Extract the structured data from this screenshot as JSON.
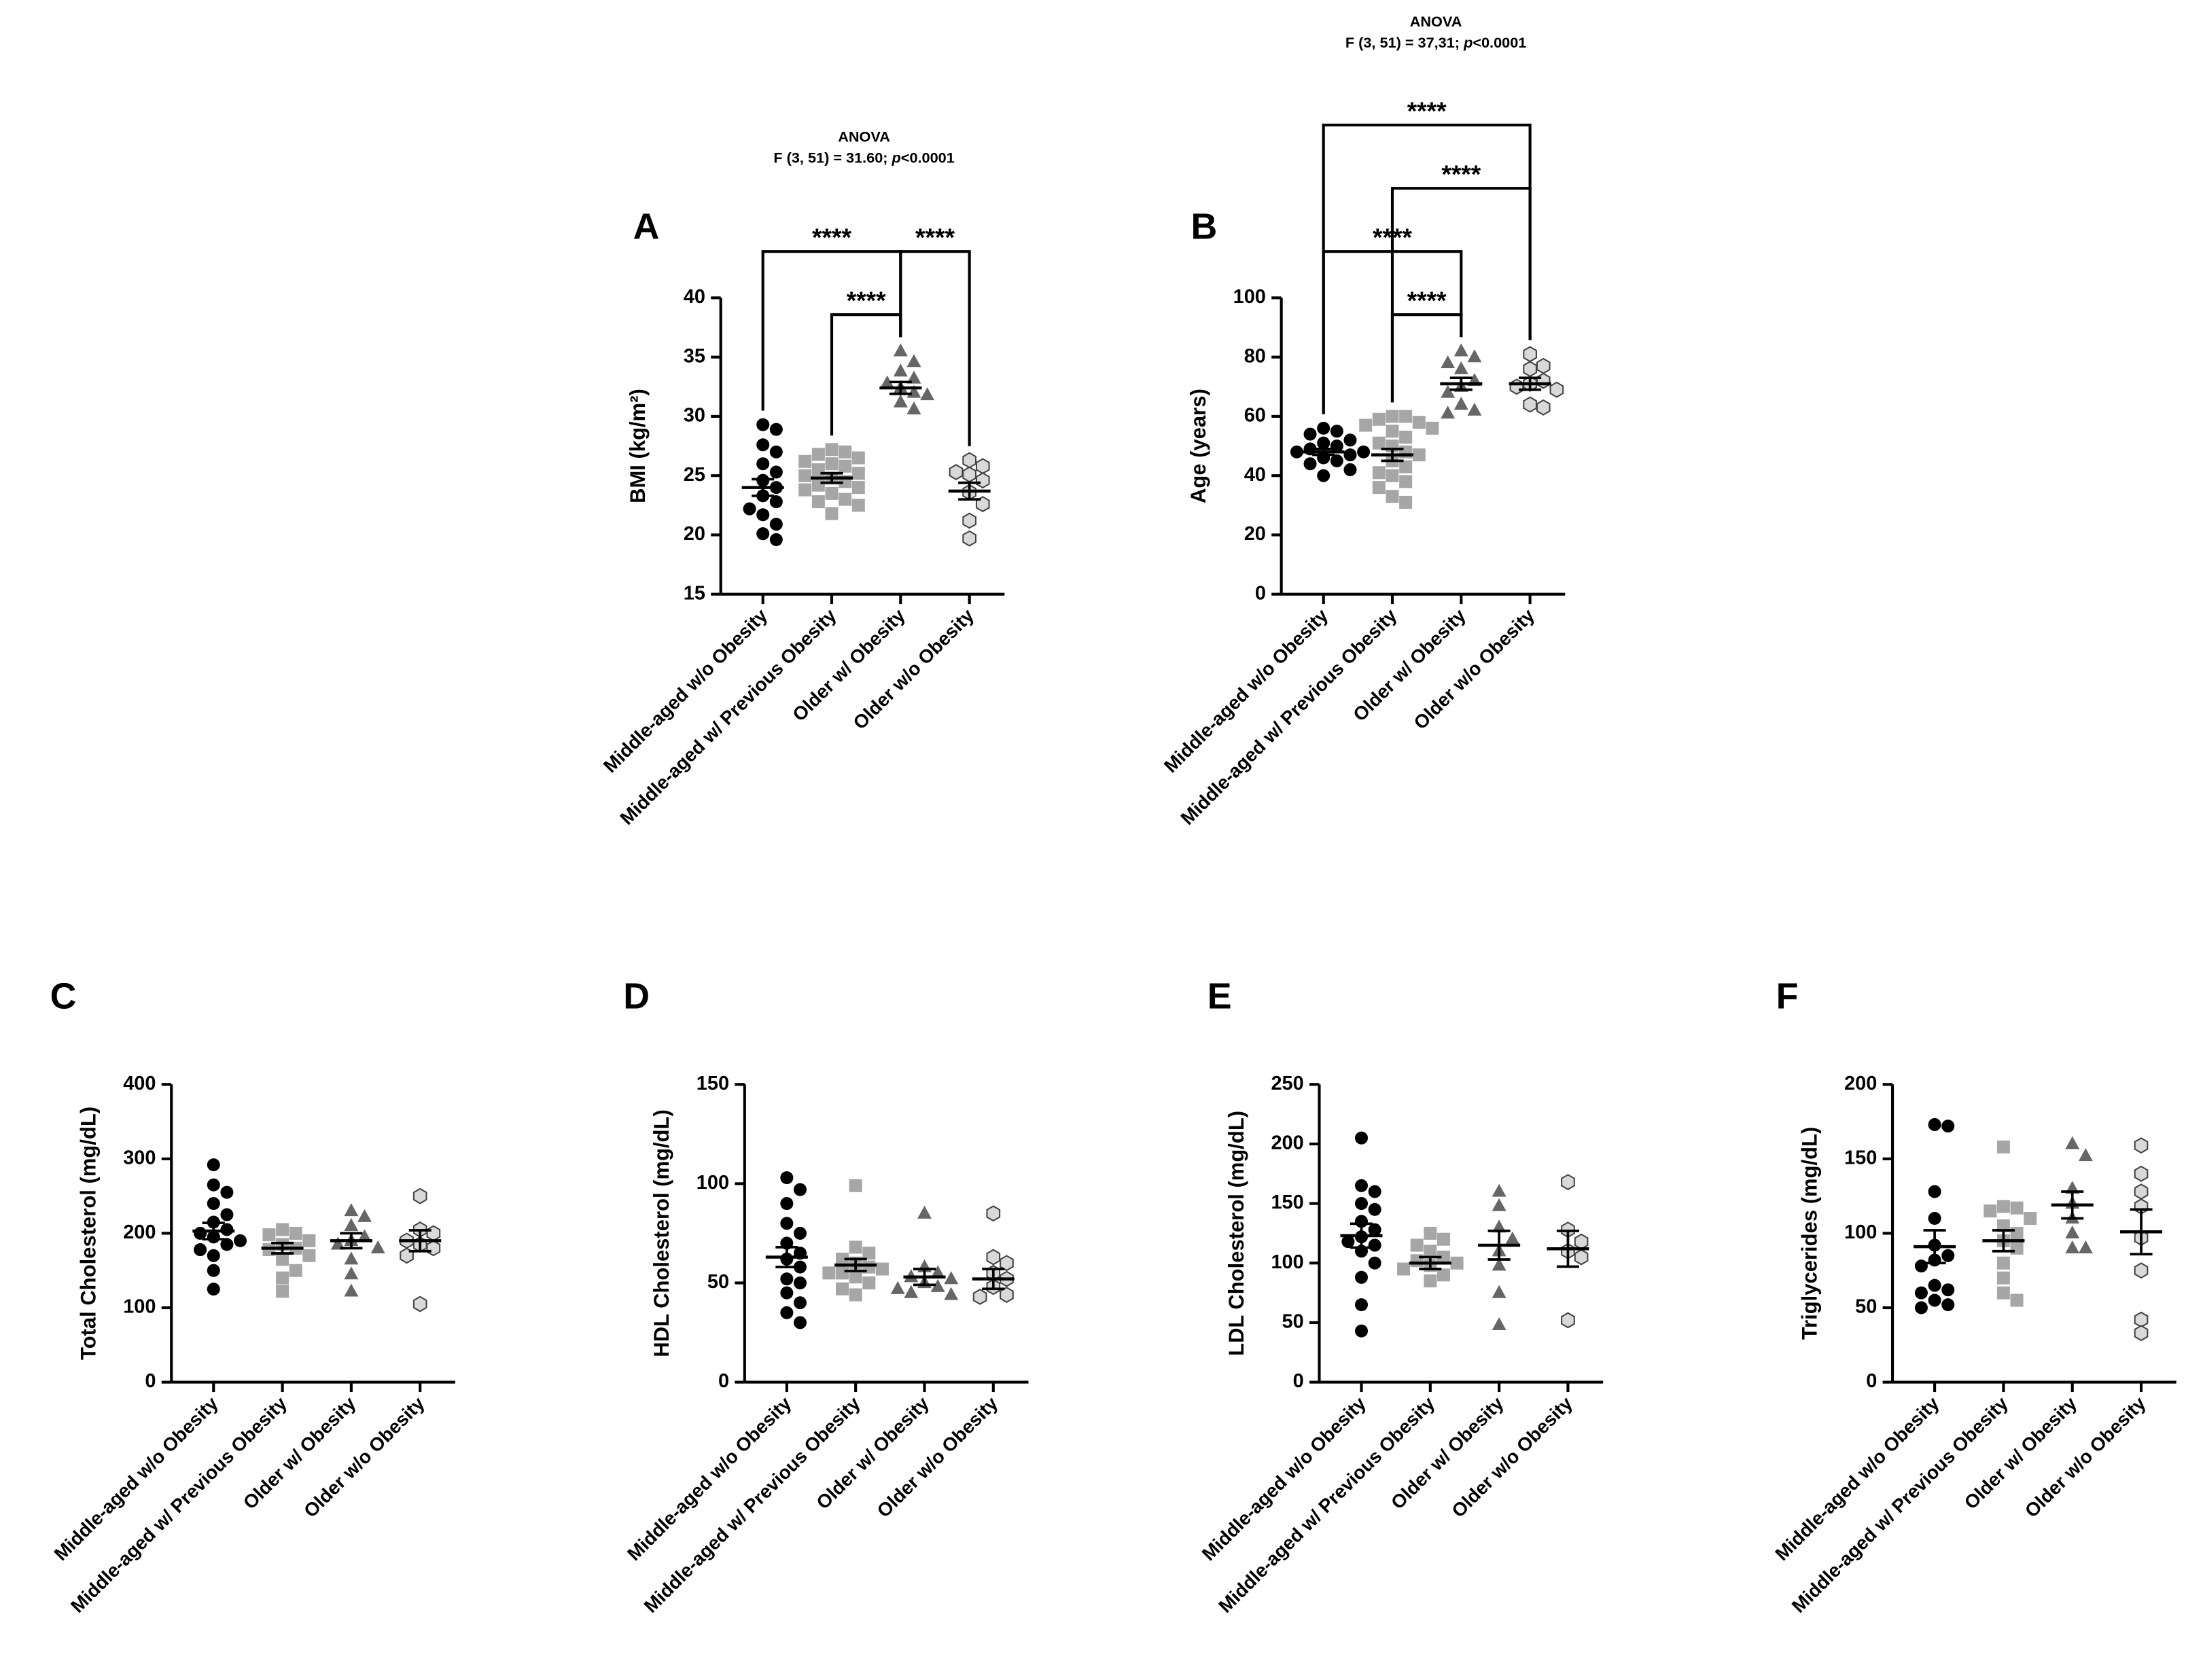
{
  "chart_data": [
    {
      "type": "dotplot",
      "label": "A",
      "y_label": "BMI (kg/m²)",
      "ylim": [
        15,
        40
      ],
      "yticks": [
        15,
        20,
        25,
        30,
        35,
        40
      ],
      "anova": {
        "title": "ANOVA",
        "stat": "F (3, 51) = 31.60; ",
        "p": "p",
        "p_text": "<0.0001"
      },
      "comparisons": [
        {
          "groups": [
            1,
            2
          ],
          "label": "****"
        },
        {
          "groups": [
            0,
            2
          ],
          "label": "****"
        },
        {
          "groups": [
            2,
            3
          ],
          "label": "****"
        }
      ],
      "series": [
        {
          "name": "Middle-aged w/o Obesity",
          "marker": "circle",
          "color": "#000000",
          "values": [
            29.3,
            28.9,
            27.6,
            27,
            26,
            25.3,
            24.6,
            24,
            23.3,
            22.8,
            22.2,
            21.7,
            20.9,
            20.1,
            19.6
          ],
          "mean": 24.0,
          "sem": 0.7
        },
        {
          "name": "Middle-aged w/ Previous Obesity",
          "marker": "square",
          "color": "#a6a6a6",
          "values": [
            27.2,
            27,
            26.8,
            26.5,
            26.2,
            26,
            25.8,
            25.5,
            25.2,
            25,
            24.8,
            24.5,
            24.2,
            24,
            23.8,
            23.5,
            23,
            22.8,
            22.5,
            21.8
          ],
          "mean": 24.8,
          "sem": 0.4
        },
        {
          "name": "Older w/ Obesity",
          "marker": "triangle",
          "color": "#666666",
          "values": [
            35.5,
            34.6,
            33.8,
            33.2,
            32.8,
            32.4,
            32,
            31.8,
            31.2,
            30.6
          ],
          "mean": 32.4,
          "sem": 0.5
        },
        {
          "name": "Older w/o Obesity",
          "marker": "hexagon",
          "color": "#d9d9d9",
          "values": [
            26.3,
            25.8,
            25.3,
            25.1,
            24.6,
            23.6,
            22.6,
            21.2,
            19.7
          ],
          "mean": 23.7,
          "sem": 0.7
        }
      ]
    },
    {
      "type": "dotplot",
      "label": "B",
      "y_label": "Age (years)",
      "ylim": [
        0,
        100
      ],
      "yticks": [
        0,
        20,
        40,
        60,
        80,
        100
      ],
      "anova": {
        "title": "ANOVA",
        "stat": "F (3, 51) = 37,31; ",
        "p": "p",
        "p_text": "<0.0001"
      },
      "comparisons": [
        {
          "groups": [
            1,
            2
          ],
          "label": "****"
        },
        {
          "groups": [
            0,
            2
          ],
          "label": "****"
        },
        {
          "groups": [
            1,
            3
          ],
          "label": "****"
        },
        {
          "groups": [
            0,
            3
          ],
          "label": "****"
        }
      ],
      "series": [
        {
          "name": "Middle-aged w/o Obesity",
          "marker": "circle",
          "color": "#000000",
          "values": [
            56,
            55,
            54,
            52,
            51,
            50,
            49,
            48,
            48,
            47,
            46,
            45,
            44,
            42,
            40
          ],
          "mean": 48,
          "sem": 1
        },
        {
          "name": "Middle-aged w/ Previous Obesity",
          "marker": "square",
          "color": "#a6a6a6",
          "values": [
            60,
            60,
            59,
            58,
            57,
            56,
            55,
            53,
            51,
            50,
            48,
            47,
            45,
            43,
            41,
            40,
            38,
            36,
            33,
            31
          ],
          "mean": 47,
          "sem": 2
        },
        {
          "name": "Older w/ Obesity",
          "marker": "triangle",
          "color": "#666666",
          "values": [
            82,
            80,
            78,
            76,
            72,
            70,
            68,
            64,
            62,
            61
          ],
          "mean": 71,
          "sem": 2
        },
        {
          "name": "Older w/o Obesity",
          "marker": "hexagon",
          "color": "#d9d9d9",
          "values": [
            81,
            77,
            76,
            72,
            71,
            70,
            69,
            64,
            63
          ],
          "mean": 71,
          "sem": 2
        }
      ]
    },
    {
      "type": "dotplot",
      "label": "C",
      "y_label": "Total Cholesterol (mg/dL)",
      "ylim": [
        0,
        400
      ],
      "yticks": [
        0,
        100,
        200,
        300,
        400
      ],
      "series": [
        {
          "name": "Middle-aged w/o Obesity",
          "marker": "circle",
          "color": "#000000",
          "values": [
            292,
            265,
            255,
            240,
            225,
            215,
            205,
            200,
            195,
            190,
            185,
            178,
            170,
            150,
            125
          ],
          "mean": 203,
          "sem": 11
        },
        {
          "name": "Middle-aged w/ Previous Obesity",
          "marker": "square",
          "color": "#a6a6a6",
          "values": [
            205,
            200,
            198,
            190,
            185,
            180,
            178,
            170,
            165,
            150,
            140,
            122
          ],
          "mean": 180,
          "sem": 7
        },
        {
          "name": "Older w/ Obesity",
          "marker": "triangle",
          "color": "#666666",
          "values": [
            230,
            222,
            210,
            195,
            190,
            185,
            180,
            165,
            145,
            122
          ],
          "mean": 190,
          "sem": 10
        },
        {
          "name": "Older w/o Obesity",
          "marker": "hexagon",
          "color": "#d9d9d9",
          "values": [
            250,
            205,
            200,
            190,
            185,
            180,
            170,
            105
          ],
          "mean": 190,
          "sem": 14
        }
      ]
    },
    {
      "type": "dotplot",
      "label": "D",
      "y_label": "HDL Cholesterol (mg/dL)",
      "ylim": [
        0,
        150
      ],
      "yticks": [
        0,
        50,
        100,
        150
      ],
      "series": [
        {
          "name": "Middle-aged w/o Obesity",
          "marker": "circle",
          "color": "#000000",
          "values": [
            103,
            97,
            90,
            80,
            75,
            70,
            65,
            62,
            58,
            52,
            50,
            45,
            40,
            35,
            30
          ],
          "mean": 63,
          "sem": 5
        },
        {
          "name": "Middle-aged w/ Previous Obesity",
          "marker": "square",
          "color": "#a6a6a6",
          "values": [
            99,
            68,
            65,
            62,
            60,
            58,
            57,
            55,
            55,
            53,
            50,
            47,
            44
          ],
          "mean": 59,
          "sem": 3
        },
        {
          "name": "Older w/ Obesity",
          "marker": "triangle",
          "color": "#666666",
          "values": [
            85,
            58,
            55,
            53,
            52,
            50,
            48,
            47,
            45,
            44
          ],
          "mean": 53,
          "sem": 4
        },
        {
          "name": "Older w/o Obesity",
          "marker": "hexagon",
          "color": "#d9d9d9",
          "values": [
            85,
            63,
            60,
            55,
            52,
            48,
            44,
            43
          ],
          "mean": 52,
          "sem": 5
        }
      ]
    },
    {
      "type": "dotplot",
      "label": "E",
      "y_label": "LDL Cholesterol (mg/dL)",
      "ylim": [
        0,
        250
      ],
      "yticks": [
        0,
        50,
        100,
        150,
        200,
        250
      ],
      "series": [
        {
          "name": "Middle-aged w/o Obesity",
          "marker": "circle",
          "color": "#000000",
          "values": [
            205,
            165,
            160,
            150,
            145,
            135,
            128,
            122,
            118,
            115,
            110,
            100,
            88,
            65,
            43
          ],
          "mean": 123,
          "sem": 10
        },
        {
          "name": "Middle-aged w/ Previous Obesity",
          "marker": "square",
          "color": "#a6a6a6",
          "values": [
            125,
            120,
            115,
            110,
            105,
            102,
            100,
            98,
            95,
            90,
            85
          ],
          "mean": 100,
          "sem": 5
        },
        {
          "name": "Older w/ Obesity",
          "marker": "triangle",
          "color": "#666666",
          "values": [
            160,
            148,
            130,
            120,
            110,
            98,
            75,
            48
          ],
          "mean": 115,
          "sem": 12
        },
        {
          "name": "Older w/o Obesity",
          "marker": "hexagon",
          "color": "#d9d9d9",
          "values": [
            168,
            128,
            118,
            110,
            105,
            52
          ],
          "mean": 112,
          "sem": 15
        }
      ]
    },
    {
      "type": "dotplot",
      "label": "F",
      "y_label": "Triglycerides (mg/dL)",
      "ylim": [
        0,
        200
      ],
      "yticks": [
        0,
        50,
        100,
        150,
        200
      ],
      "series": [
        {
          "name": "Middle-aged w/o Obesity",
          "marker": "circle",
          "color": "#000000",
          "values": [
            173,
            172,
            128,
            110,
            92,
            85,
            82,
            78,
            65,
            62,
            60,
            55,
            52,
            50
          ],
          "mean": 91,
          "sem": 11
        },
        {
          "name": "Middle-aged w/ Previous Obesity",
          "marker": "square",
          "color": "#a6a6a6",
          "values": [
            158,
            118,
            117,
            115,
            110,
            105,
            100,
            95,
            90,
            80,
            70,
            60,
            55
          ],
          "mean": 95,
          "sem": 7
        },
        {
          "name": "Older w/ Obesity",
          "marker": "triangle",
          "color": "#666666",
          "values": [
            160,
            152,
            130,
            120,
            110,
            100,
            90,
            90
          ],
          "mean": 119,
          "sem": 9
        },
        {
          "name": "Older w/o Obesity",
          "marker": "hexagon",
          "color": "#d9d9d9",
          "values": [
            159,
            140,
            128,
            118,
            97,
            75,
            42,
            33
          ],
          "mean": 101,
          "sem": 15
        }
      ]
    }
  ]
}
